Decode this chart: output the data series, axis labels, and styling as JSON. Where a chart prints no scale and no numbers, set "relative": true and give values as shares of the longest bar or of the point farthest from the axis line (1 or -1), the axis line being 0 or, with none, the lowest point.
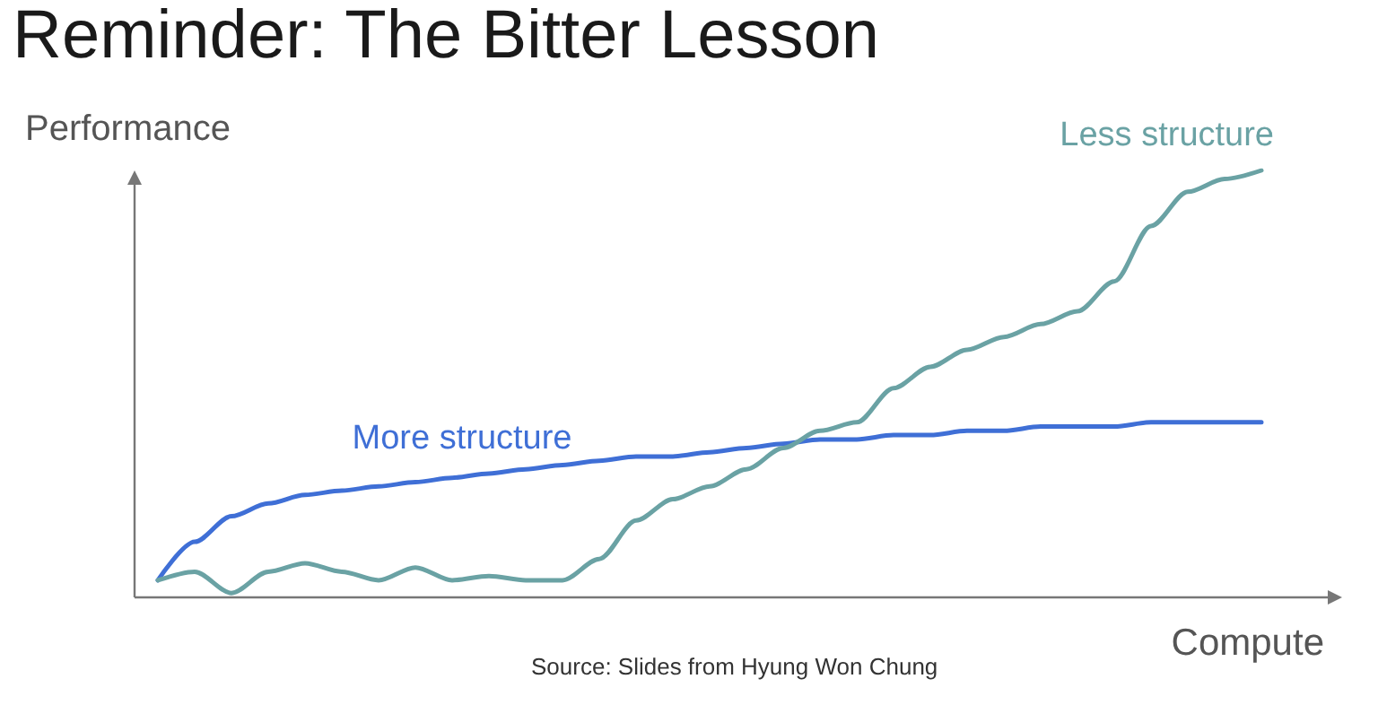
{
  "chart_data": {
    "type": "line",
    "title": "Reminder: The Bitter Lesson",
    "xlabel": "Compute",
    "ylabel": "Performance",
    "relative": true,
    "legend": false,
    "grid": false,
    "marker": "none",
    "annotations": [
      "Source: Slides from Hyung Won Chung"
    ],
    "categories": [
      null,
      null,
      null,
      null,
      null,
      null,
      null,
      null,
      null,
      null,
      null,
      null,
      null,
      null,
      null,
      null,
      null,
      null,
      null,
      null,
      null,
      null,
      null,
      null,
      null,
      null,
      null,
      null,
      null,
      null,
      null
    ],
    "series": [
      {
        "name": "More structure",
        "color": "#3f6fd6",
        "values": [
          0.04,
          0.13,
          0.19,
          0.22,
          0.24,
          0.25,
          0.26,
          0.27,
          0.28,
          0.29,
          0.3,
          0.31,
          0.32,
          0.33,
          0.33,
          0.34,
          0.35,
          0.36,
          0.37,
          0.37,
          0.38,
          0.38,
          0.39,
          0.39,
          0.4,
          0.4,
          0.4,
          0.41,
          0.41,
          0.41,
          0.41
        ]
      },
      {
        "name": "Less structure",
        "color": "#6aa2a4",
        "values": [
          0.04,
          0.06,
          0.01,
          0.06,
          0.08,
          0.06,
          0.04,
          0.07,
          0.04,
          0.05,
          0.04,
          0.04,
          0.09,
          0.18,
          0.23,
          0.26,
          0.3,
          0.35,
          0.39,
          0.41,
          0.49,
          0.54,
          0.58,
          0.61,
          0.64,
          0.67,
          0.74,
          0.87,
          0.95,
          0.98,
          1
        ]
      }
    ]
  }
}
